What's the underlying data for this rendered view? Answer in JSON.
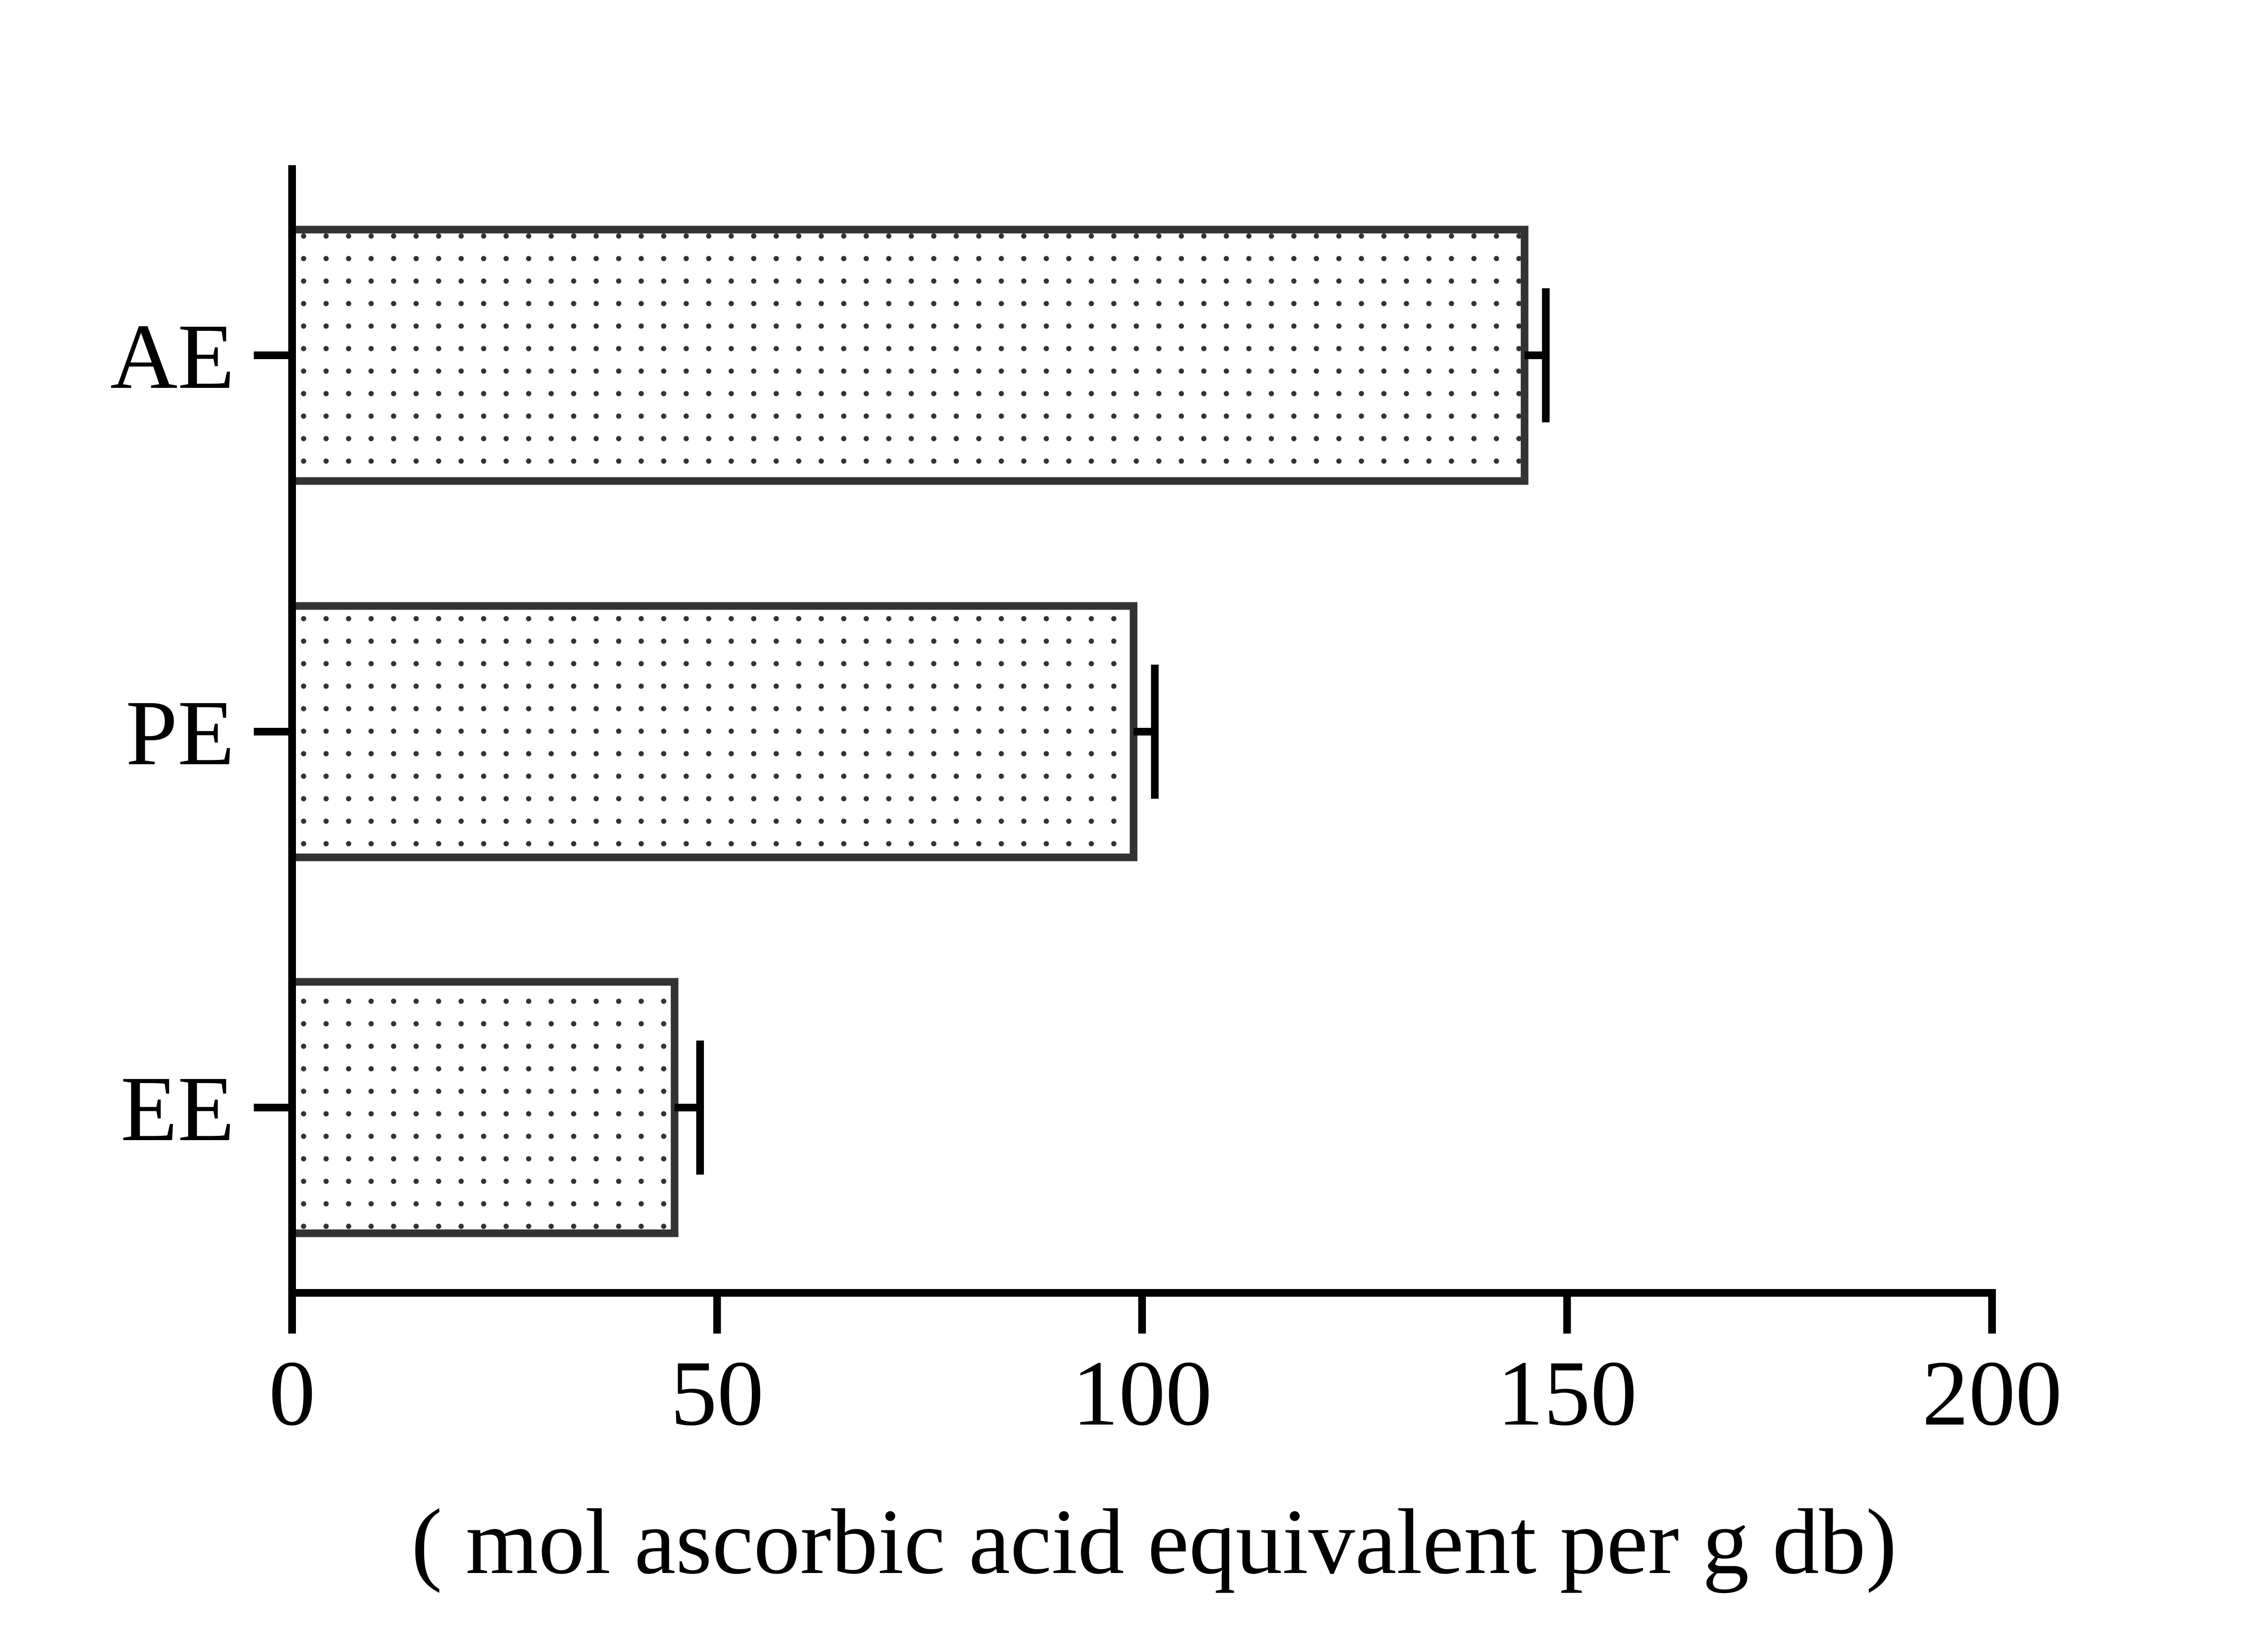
{
  "chart_data": {
    "type": "bar",
    "orientation": "horizontal",
    "categories": [
      "AE",
      "PE",
      "EE"
    ],
    "values": [
      145,
      99,
      45
    ],
    "errors": [
      2.5,
      2.5,
      3
    ],
    "xlabel": "( mol ascorbic acid equivalent per g db)",
    "ylabel": "",
    "xlim": [
      0,
      200
    ],
    "xticks": [
      "0",
      "50",
      "100",
      "150",
      "200"
    ],
    "grid": false,
    "legend": "none",
    "bar_fill": "#ffffff",
    "bar_pattern": "dotted",
    "bar_stroke": "#333333",
    "axis_color": "#000000"
  }
}
